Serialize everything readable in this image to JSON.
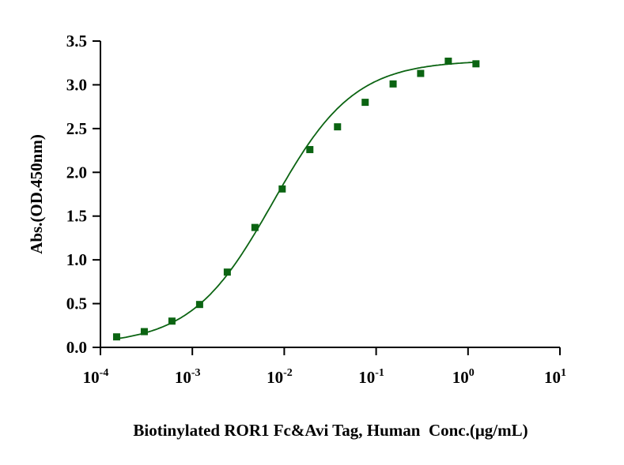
{
  "chart_data": {
    "type": "scatter",
    "title": "",
    "xlabel": "Biotinylated ROR1 Fc&Avi Tag, Human  Conc.(μg/mL)",
    "ylabel": "Abs.(OD.450nm)",
    "xscale": "log",
    "xlim": [
      0.0001,
      10
    ],
    "ylim": [
      0,
      3.5
    ],
    "x_ticks": [
      {
        "value": 0.0001,
        "base": "10",
        "exp": "-4"
      },
      {
        "value": 0.001,
        "base": "10",
        "exp": "-3"
      },
      {
        "value": 0.01,
        "base": "10",
        "exp": "-2"
      },
      {
        "value": 0.1,
        "base": "10",
        "exp": "-1"
      },
      {
        "value": 1,
        "base": "10",
        "exp": "0"
      },
      {
        "value": 10,
        "base": "10",
        "exp": "1"
      }
    ],
    "y_ticks": [
      "0.0",
      "0.5",
      "1.0",
      "1.5",
      "2.0",
      "2.5",
      "3.0",
      "3.5"
    ],
    "grid": false,
    "series": [
      {
        "name": "Biotinylated ROR1 Fc&Avi Tag",
        "color": "#0b6412",
        "marker": "square",
        "x": [
          0.00015,
          0.0003,
          0.0006,
          0.0012,
          0.0024,
          0.0048,
          0.0095,
          0.019,
          0.038,
          0.076,
          0.153,
          0.305,
          0.61,
          1.22
        ],
        "y": [
          0.12,
          0.18,
          0.3,
          0.49,
          0.86,
          1.37,
          1.81,
          2.26,
          2.52,
          2.8,
          3.01,
          3.13,
          3.27,
          3.24
        ],
        "fit": {
          "model": "4PL",
          "bottom": 0.03,
          "top": 3.28,
          "ec50": 0.0075,
          "hill": 0.98
        }
      }
    ]
  }
}
